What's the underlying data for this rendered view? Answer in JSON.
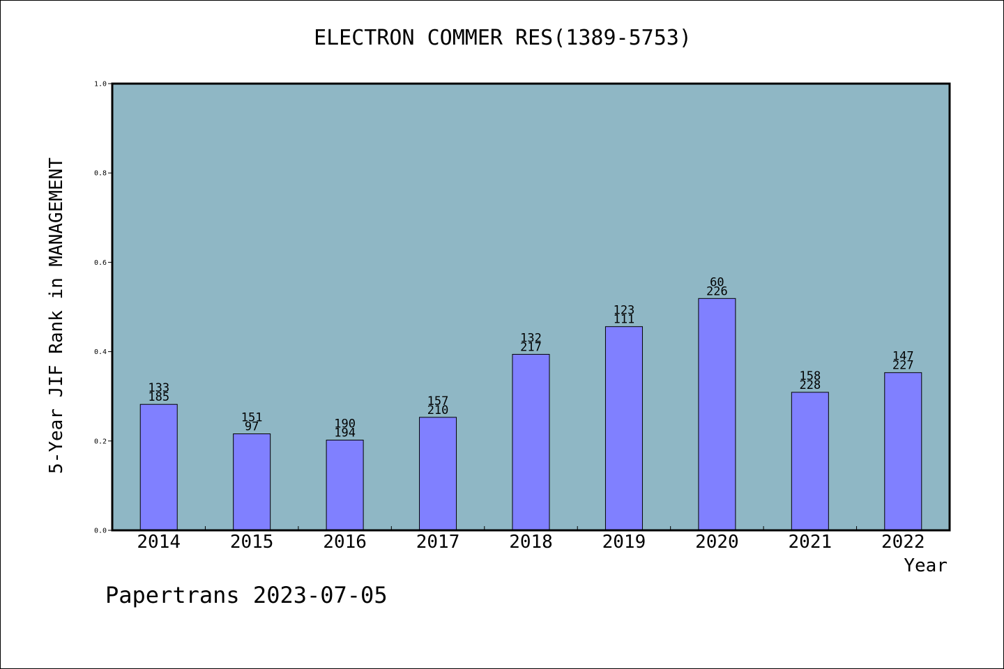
{
  "chart_data": {
    "type": "bar",
    "title": "ELECTRON COMMER RES(1389-5753)",
    "xlabel": "Year",
    "ylabel": "5-Year JIF Rank in MANAGEMENT",
    "ylim": [
      0,
      1.0
    ],
    "yticks": [
      "0.0",
      "0.2",
      "0.4",
      "0.6",
      "0.8",
      "1.0"
    ],
    "categories": [
      "2014",
      "2015",
      "2016",
      "2017",
      "2018",
      "2019",
      "2020",
      "2021",
      "2022"
    ],
    "values": [
      0.282,
      0.216,
      0.202,
      0.253,
      0.394,
      0.456,
      0.519,
      0.309,
      0.353
    ],
    "bar_labels": [
      [
        "133",
        "185"
      ],
      [
        "151",
        "97"
      ],
      [
        "190",
        "194"
      ],
      [
        "157",
        "210"
      ],
      [
        "132",
        "217"
      ],
      [
        "123",
        "111"
      ],
      [
        "60",
        "226"
      ],
      [
        "158",
        "228"
      ],
      [
        "147",
        "227"
      ]
    ],
    "grid": false,
    "colors": {
      "plot_background": "#8fb7c5",
      "bar": "#8080ff",
      "bar_edge": "#000000"
    }
  },
  "footer": "Papertrans 2023-07-05"
}
